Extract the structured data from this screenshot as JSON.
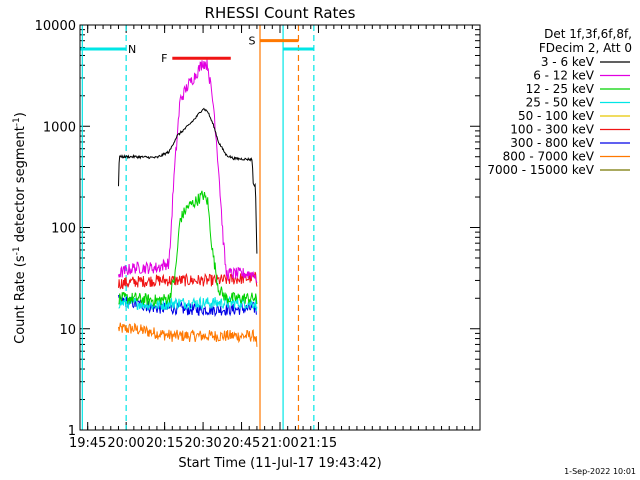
{
  "chart_data": {
    "type": "line",
    "title": "RHESSI Count Rates",
    "xlabel": "Start Time (11-Jul-17 19:43:42)",
    "ylabel_main": "Count Rate (s",
    "ylabel_sup": "-1",
    "ylabel_tail": " detector segment",
    "ylabel_sup2": "-1",
    "ylabel_close": ")",
    "y_scale": "log",
    "ylim": [
      1,
      10000
    ],
    "xlim_minutes": [
      19.7,
      22.3
    ],
    "x_ticks": [
      {
        "t": 19.75,
        "label": "19:45"
      },
      {
        "t": 20.0,
        "label": "20:00"
      },
      {
        "t": 20.25,
        "label": "20:15"
      },
      {
        "t": 20.5,
        "label": "20:30"
      },
      {
        "t": 20.75,
        "label": "20:45"
      },
      {
        "t": 21.0,
        "label": "21:00"
      },
      {
        "t": 21.25,
        "label": "21:15"
      }
    ],
    "y_ticks": [
      {
        "v": 1,
        "label": "1"
      },
      {
        "v": 10,
        "label": "10"
      },
      {
        "v": 100,
        "label": "100"
      },
      {
        "v": 1000,
        "label": "1000"
      },
      {
        "v": 10000,
        "label": "10000"
      }
    ],
    "legend": {
      "header1": "Det 1f,3f,6f,8f,",
      "header2": "FDecim 2, Att 0",
      "position": "top-right",
      "entries": [
        {
          "label": "3 - 6 keV",
          "color": "#000000"
        },
        {
          "label": "6 - 12 keV",
          "color": "#e100e1"
        },
        {
          "label": "12 - 25 keV",
          "color": "#00d200"
        },
        {
          "label": "25 - 50 keV",
          "color": "#00e6e6"
        },
        {
          "label": "50 - 100 keV",
          "color": "#e6c800"
        },
        {
          "label": "100 - 300 keV",
          "color": "#f01414"
        },
        {
          "label": "300 - 800 keV",
          "color": "#0000e6"
        },
        {
          "label": "800 - 7000 keV",
          "color": "#ff7800"
        },
        {
          "label": "7000 - 15000 keV",
          "color": "#787800"
        }
      ]
    },
    "series": [
      {
        "name": "3 - 6 keV",
        "color": "#000000",
        "points": [
          [
            19.95,
            260
          ],
          [
            19.955,
            500
          ],
          [
            20.05,
            500
          ],
          [
            20.2,
            490
          ],
          [
            20.28,
            560
          ],
          [
            20.33,
            800
          ],
          [
            20.4,
            1000
          ],
          [
            20.45,
            1200
          ],
          [
            20.5,
            1500
          ],
          [
            20.53,
            1400
          ],
          [
            20.57,
            1000
          ],
          [
            20.6,
            700
          ],
          [
            20.65,
            520
          ],
          [
            20.7,
            480
          ],
          [
            20.82,
            470
          ],
          [
            20.825,
            270
          ],
          [
            20.84,
            260
          ],
          [
            20.85,
            55
          ]
        ]
      },
      {
        "name": "6 - 12 keV",
        "color": "#e100e1",
        "points": [
          [
            19.95,
            35
          ],
          [
            20.05,
            40
          ],
          [
            20.2,
            40
          ],
          [
            20.28,
            45
          ],
          [
            20.31,
            300
          ],
          [
            20.35,
            1800
          ],
          [
            20.4,
            2500
          ],
          [
            20.45,
            3200
          ],
          [
            20.5,
            4300
          ],
          [
            20.53,
            4000
          ],
          [
            20.57,
            1500
          ],
          [
            20.6,
            400
          ],
          [
            20.63,
            80
          ],
          [
            20.65,
            35
          ],
          [
            20.75,
            35
          ],
          [
            20.84,
            35
          ],
          [
            20.85,
            25
          ]
        ]
      },
      {
        "name": "12 - 25 keV",
        "color": "#00d200",
        "points": [
          [
            19.95,
            20
          ],
          [
            20.05,
            20
          ],
          [
            20.2,
            19
          ],
          [
            20.28,
            20
          ],
          [
            20.32,
            35
          ],
          [
            20.35,
            120
          ],
          [
            20.4,
            160
          ],
          [
            20.45,
            180
          ],
          [
            20.5,
            210
          ],
          [
            20.53,
            180
          ],
          [
            20.56,
            60
          ],
          [
            20.6,
            25
          ],
          [
            20.65,
            20
          ],
          [
            20.75,
            20
          ],
          [
            20.84,
            20
          ],
          [
            20.85,
            18
          ]
        ]
      },
      {
        "name": "25 - 50 keV",
        "color": "#00e6e6",
        "points": [
          [
            19.95,
            18
          ],
          [
            20.05,
            18
          ],
          [
            20.2,
            17
          ],
          [
            20.3,
            18
          ],
          [
            20.4,
            18
          ],
          [
            20.5,
            18
          ],
          [
            20.6,
            18
          ],
          [
            20.7,
            18
          ],
          [
            20.84,
            18
          ],
          [
            20.85,
            15
          ]
        ]
      },
      {
        "name": "100 - 300 keV",
        "color": "#f01414",
        "points": [
          [
            19.95,
            28
          ],
          [
            20.05,
            29
          ],
          [
            20.2,
            30
          ],
          [
            20.3,
            30
          ],
          [
            20.4,
            30
          ],
          [
            20.5,
            30
          ],
          [
            20.6,
            30
          ],
          [
            20.7,
            31
          ],
          [
            20.84,
            32
          ],
          [
            20.85,
            28
          ]
        ]
      },
      {
        "name": "300 - 800 keV",
        "color": "#0000e6",
        "points": [
          [
            19.95,
            19
          ],
          [
            20.05,
            18
          ],
          [
            20.2,
            16
          ],
          [
            20.3,
            16
          ],
          [
            20.4,
            15.5
          ],
          [
            20.5,
            15.5
          ],
          [
            20.6,
            15.5
          ],
          [
            20.7,
            15.5
          ],
          [
            20.84,
            16
          ],
          [
            20.85,
            14
          ]
        ]
      },
      {
        "name": "800 - 7000 keV",
        "color": "#ff7800",
        "points": [
          [
            19.95,
            10
          ],
          [
            20.05,
            10
          ],
          [
            20.2,
            9
          ],
          [
            20.3,
            8.5
          ],
          [
            20.4,
            8.5
          ],
          [
            20.5,
            8.5
          ],
          [
            20.6,
            8.5
          ],
          [
            20.7,
            8.5
          ],
          [
            20.84,
            8.5
          ],
          [
            20.85,
            7
          ]
        ]
      }
    ],
    "flag_bars": [
      {
        "label": "N",
        "color": "#00e6e6",
        "t0": 19.7,
        "t1": 20.0,
        "y": 5800
      },
      {
        "label": "F",
        "color": "#f01414",
        "t0": 20.3,
        "t1": 20.68,
        "y": 4700
      },
      {
        "label": "S",
        "color": "#ff7800",
        "t0": 20.87,
        "t1": 21.12,
        "y": 7000
      },
      {
        "label": "",
        "color": "#00e6e6",
        "t0": 21.02,
        "t1": 21.22,
        "y": 5800
      }
    ],
    "vertical_lines": [
      {
        "t": 19.715,
        "color": "#00e6e6",
        "style": "solid"
      },
      {
        "t": 20.0,
        "color": "#00e6e6",
        "style": "dashed"
      },
      {
        "t": 20.87,
        "color": "#ff7800",
        "style": "solid"
      },
      {
        "t": 21.02,
        "color": "#00e6e6",
        "style": "solid"
      },
      {
        "t": 21.12,
        "color": "#ff7800",
        "style": "dashed"
      },
      {
        "t": 21.22,
        "color": "#00e6e6",
        "style": "dashed"
      }
    ],
    "timestamp": "1-Sep-2022 10:01"
  }
}
